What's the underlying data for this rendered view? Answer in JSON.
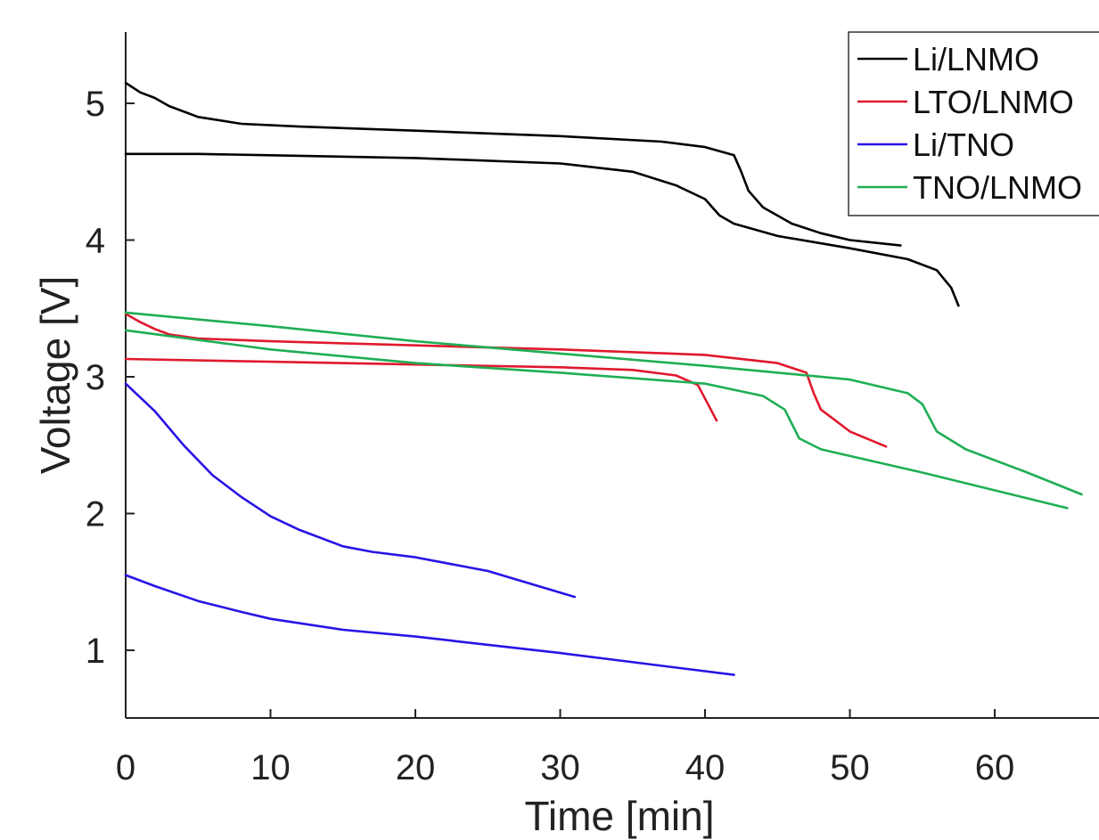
{
  "chart_data": {
    "type": "line",
    "title": "",
    "xlabel": "Time [min]",
    "ylabel": "Voltage [V]",
    "xlim": [
      0,
      68
    ],
    "ylim": [
      0.5,
      5.5
    ],
    "xticks": [
      0,
      10,
      20,
      30,
      40,
      50,
      60
    ],
    "yticks": [
      1,
      2,
      3,
      4,
      5
    ],
    "grid": false,
    "legend_position": "top-right",
    "legend": [
      {
        "label": "Li/LNMO",
        "color": "#000000"
      },
      {
        "label": "LTO/LNMO",
        "color": "#e0192d"
      },
      {
        "label": "Li/TNO",
        "color": "#2814e6"
      },
      {
        "label": "TNO/LNMO",
        "color": "#1fae55"
      }
    ],
    "series": [
      {
        "name": "Li/LNMO",
        "color": "#000000",
        "x": [
          0,
          1,
          2,
          3,
          5,
          8,
          12,
          20,
          30,
          37,
          40,
          42,
          42.5,
          43,
          44,
          46,
          48,
          50,
          53.5
        ],
        "y": [
          5.15,
          5.08,
          5.04,
          4.98,
          4.9,
          4.85,
          4.83,
          4.8,
          4.76,
          4.72,
          4.68,
          4.62,
          4.5,
          4.36,
          4.24,
          4.12,
          4.05,
          4.0,
          3.96
        ]
      },
      {
        "name": "Li/LNMO",
        "color": "#000000",
        "x": [
          0,
          5,
          10,
          20,
          30,
          35,
          38,
          40,
          41,
          42,
          45,
          50,
          54,
          56,
          57,
          57.5
        ],
        "y": [
          4.63,
          4.63,
          4.62,
          4.6,
          4.56,
          4.5,
          4.4,
          4.3,
          4.18,
          4.12,
          4.03,
          3.94,
          3.86,
          3.78,
          3.65,
          3.52
        ]
      },
      {
        "name": "LTO/LNMO",
        "color": "#e0192d",
        "x": [
          0,
          1,
          2,
          3,
          5,
          10,
          20,
          30,
          40,
          45,
          47,
          47.5,
          48,
          49,
          50,
          52.5
        ],
        "y": [
          3.46,
          3.4,
          3.35,
          3.31,
          3.28,
          3.26,
          3.23,
          3.2,
          3.16,
          3.1,
          3.03,
          2.88,
          2.76,
          2.68,
          2.6,
          2.49
        ]
      },
      {
        "name": "LTO/LNMO",
        "color": "#e0192d",
        "x": [
          0,
          10,
          20,
          30,
          35,
          38,
          39.5,
          40.2,
          40.8
        ],
        "y": [
          3.13,
          3.11,
          3.09,
          3.07,
          3.05,
          3.01,
          2.94,
          2.8,
          2.68
        ]
      },
      {
        "name": "Li/TNO",
        "color": "#2814e6",
        "x": [
          0,
          2,
          4,
          6,
          8,
          10,
          12,
          15,
          17,
          20,
          25,
          31
        ],
        "y": [
          2.95,
          2.75,
          2.5,
          2.28,
          2.12,
          1.98,
          1.88,
          1.76,
          1.72,
          1.68,
          1.58,
          1.39
        ]
      },
      {
        "name": "Li/TNO",
        "color": "#2814e6",
        "x": [
          0,
          2,
          5,
          8,
          10,
          15,
          20,
          30,
          42
        ],
        "y": [
          1.55,
          1.47,
          1.36,
          1.28,
          1.23,
          1.15,
          1.1,
          0.98,
          0.82
        ]
      },
      {
        "name": "TNO/LNMO",
        "color": "#1fae55",
        "x": [
          0,
          10,
          20,
          30,
          40,
          50,
          54,
          55,
          56,
          58,
          62,
          66
        ],
        "y": [
          3.47,
          3.37,
          3.26,
          3.17,
          3.08,
          2.98,
          2.88,
          2.8,
          2.6,
          2.47,
          2.31,
          2.14
        ]
      },
      {
        "name": "TNO/LNMO",
        "color": "#1fae55",
        "x": [
          0,
          10,
          20,
          30,
          40,
          44,
          45.5,
          46.5,
          48,
          55,
          65
        ],
        "y": [
          3.34,
          3.2,
          3.1,
          3.03,
          2.95,
          2.86,
          2.76,
          2.55,
          2.47,
          2.3,
          2.04
        ]
      }
    ]
  }
}
